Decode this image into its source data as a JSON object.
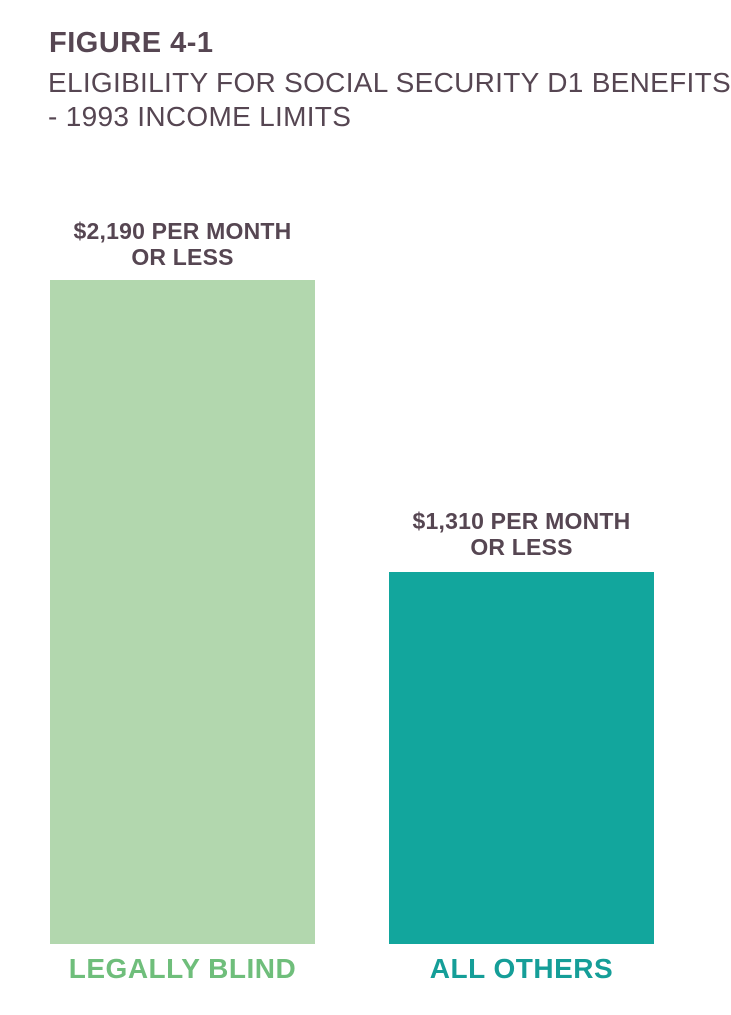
{
  "page": {
    "background": "#ffffff",
    "text_color": "#564652"
  },
  "header": {
    "figure_label": "FIGURE 4-1",
    "title_line1": "ELIGIBILITY FOR SOCIAL SECURITY D1 BENEFITS",
    "title_line2": "- 1993 INCOME LIMITS"
  },
  "chart_data": {
    "type": "bar",
    "title": "FIGURE 4-1",
    "subtitle": "ELIGIBILITY FOR SOCIAL SECURITY D1 BENEFITS - 1993 INCOME LIMITS",
    "categories": [
      "LEGALLY BLIND",
      "ALL OTHERS"
    ],
    "values": [
      2190,
      1310
    ],
    "value_unit": "dollars per month",
    "value_labels": [
      "$2,190 PER MONTH OR LESS",
      "$1,310 PER MONTH OR LESS"
    ],
    "bar_colors": [
      "#b2d7ae",
      "#12a69d"
    ],
    "category_label_colors": [
      "#6fbe7b",
      "#159e98"
    ],
    "legend": "none",
    "grid": false,
    "axes_shown": false
  },
  "bars": [
    {
      "category": "LEGALLY BLIND",
      "value": 2190,
      "value_label_line1": "$2,190 PER MONTH",
      "value_label_line2": "OR LESS",
      "bar_color": "#b2d7ae",
      "category_color": "#6fbe7b"
    },
    {
      "category": "ALL OTHERS",
      "value": 1310,
      "value_label_line1": "$1,310 PER MONTH",
      "value_label_line2": "OR LESS",
      "bar_color": "#12a69d",
      "category_color": "#159e98"
    }
  ]
}
